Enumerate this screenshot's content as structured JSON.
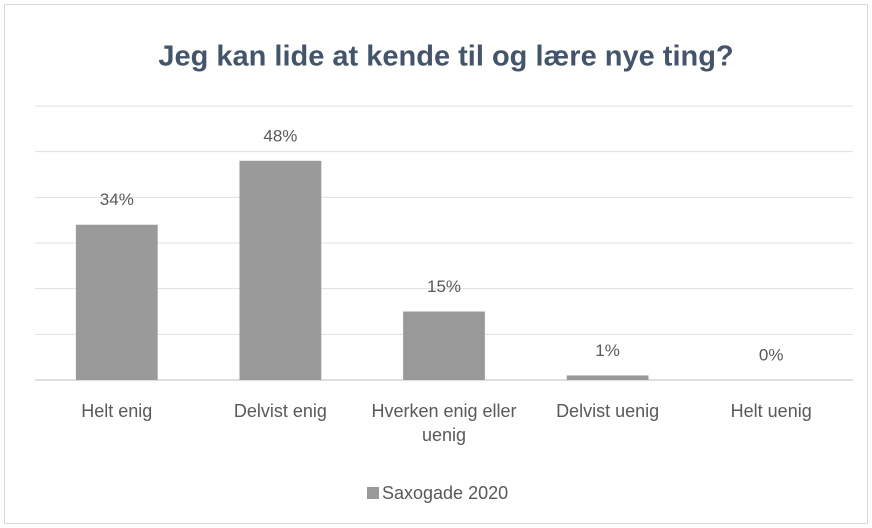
{
  "chart_data": {
    "type": "bar",
    "title": "Jeg kan lide at kende til og lære nye ting?",
    "categories": [
      "Helt enig",
      "Delvist enig",
      "Hverken enig eller uenig",
      "Delvist uenig",
      "Helt uenig"
    ],
    "series": [
      {
        "name": "Saxogade 2020",
        "color": "#9a9a9a",
        "values": [
          34,
          48,
          15,
          1,
          0
        ],
        "value_labels": [
          "34%",
          "48%",
          "15%",
          "1%",
          "0%"
        ]
      }
    ],
    "ylim": [
      0,
      60
    ],
    "yticks": [
      0,
      10,
      20,
      30,
      40,
      50,
      60
    ],
    "grid": true,
    "legend": "bottom"
  }
}
